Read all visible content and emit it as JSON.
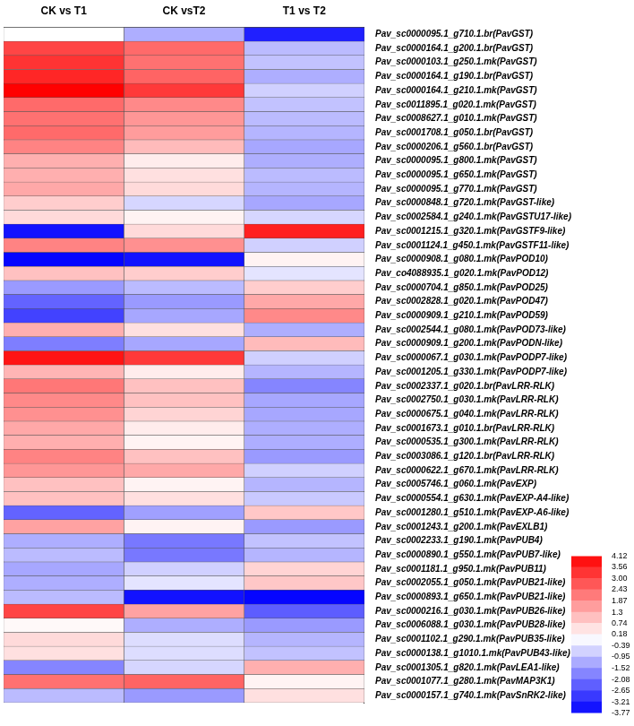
{
  "chart_data": {
    "type": "heatmap",
    "columns": [
      "CK vs T1",
      "CK vsT2",
      "T1 vs T2"
    ],
    "rows": [
      "Pav_sc0000095.1_g710.1.br(PavGST)",
      "Pav_sc0000164.1_g200.1.br(PavGST)",
      "Pav_sc0000103.1_g250.1.mk(PavGST)",
      "Pav_sc0000164.1_g190.1.br(PavGST)",
      "Pav_sc0000164.1_g210.1.mk(PavGST)",
      "Pav_sc0011895.1_g020.1.mk(PavGST)",
      "Pav_sc0008627.1_g010.1.mk(PavGST)",
      "Pav_sc0001708.1_g050.1.br(PavGST)",
      "Pav_sc0000206.1_g560.1.br(PavGST)",
      "Pav_sc0000095.1_g800.1.mk(PavGST)",
      "Pav_sc0000095.1_g650.1.mk(PavGST)",
      "Pav_sc0000095.1_g770.1.mk(PavGST)",
      "Pav_sc0000848.1_g720.1.mk(PavGST-like)",
      "Pav_sc0002584.1_g240.1.mk(PavGSTU17-like)",
      "Pav_sc0001215.1_g320.1.mk(PavGSTF9-like)",
      "Pav_sc0001124.1_g450.1.mk(PavGSTF11-like)",
      "Pav_sc0000908.1_g080.1.mk(PavPOD10)",
      "Pav_co4088935.1_g020.1.mk(PavPOD12)",
      "Pav_sc0000704.1_g850.1.mk(PavPOD25)",
      "Pav_sc0002828.1_g020.1.mk(PavPOD47)",
      "Pav_sc0000909.1_g210.1.mk(PavPOD59)",
      "Pav_sc0002544.1_g080.1.mk(PavPOD73-like)",
      "Pav_sc0000909.1_g200.1.mk(PavPODN-like)",
      "Pav_sc0000067.1_g030.1.mk(PavPODP7-like)",
      "Pav_sc0001205.1_g330.1.mk(PavPODP7-like)",
      "Pav_sc0002337.1_g020.1.br(PavLRR-RLK)",
      "Pav_sc0002750.1_g030.1.mk(PavLRR-RLK)",
      "Pav_sc0000675.1_g040.1.mk(PavLRR-RLK)",
      "Pav_sc0001673.1_g010.1.br(PavLRR-RLK)",
      "Pav_sc0000535.1_g300.1.mk(PavLRR-RLK)",
      "Pav_sc0003086.1_g120.1.br(PavLRR-RLK)",
      "Pav_sc0000622.1_g670.1.mk(PavLRR-RLK)",
      "Pav_sc0005746.1_g060.1.mk(PavEXP)",
      "Pav_sc0000554.1_g630.1.mk(PavEXP-A4-like)",
      "Pav_sc0001280.1_g510.1.mk(PavEXP-A6-like)",
      "Pav_sc0001243.1_g200.1.mk(PavEXLB1)",
      "Pav_sc0002233.1_g190.1.mk(PavPUB4)",
      "Pav_sc0000890.1_g550.1.mk(PavPUB7-like)",
      "Pav_sc0001181.1_g950.1.mk(PavPUB11)",
      "Pav_sc0002055.1_g050.1.mk(PavPUB21-like)",
      "Pav_sc0000893.1_g650.1.mk(PavPUB21-like)",
      "Pav_sc0000216.1_g030.1.mk(PavPUB26-like)",
      "Pav_sc0006088.1_g030.1.mk(PavPUB28-like)",
      "Pav_sc0001102.1_g290.1.mk(PavPUB35-like)",
      "Pav_sc0000138.1_g1010.1.mk(PavPUB43-like)",
      "Pav_sc0001305.1_g820.1.mk(PavLEA1-like)",
      "Pav_sc0001077.1_g280.1.mk(PavMAP3K1)",
      "Pav_sc0000157.1_g740.1.mk(PavSnRK2-like)"
    ],
    "values": [
      [
        0,
        -1.2,
        -3.3
      ],
      [
        3.0,
        2.4,
        -1.0
      ],
      [
        3.3,
        2.3,
        -0.9
      ],
      [
        3.5,
        2.5,
        -1.2
      ],
      [
        4.1,
        3.2,
        -0.7
      ],
      [
        2.4,
        1.9,
        -0.9
      ],
      [
        2.3,
        1.7,
        -1.0
      ],
      [
        2.4,
        1.6,
        -1.1
      ],
      [
        2.0,
        1.1,
        -1.3
      ],
      [
        1.3,
        0.3,
        -1.2
      ],
      [
        1.3,
        0.5,
        -1.0
      ],
      [
        1.4,
        0.6,
        -1.1
      ],
      [
        0.8,
        -0.6,
        -1.3
      ],
      [
        0.6,
        0.2,
        -0.6
      ],
      [
        -3.5,
        0.6,
        3.6
      ],
      [
        2.0,
        1.8,
        -0.7
      ],
      [
        -3.7,
        -3.5,
        0.2
      ],
      [
        1.0,
        0.8,
        -0.4
      ],
      [
        -1.5,
        -1.0,
        0.8
      ],
      [
        -2.3,
        -1.5,
        1.4
      ],
      [
        -2.8,
        -1.3,
        1.9
      ],
      [
        1.3,
        0.5,
        -1.2
      ],
      [
        -1.9,
        -1.3,
        1.1
      ],
      [
        3.8,
        3.2,
        -0.7
      ],
      [
        1.2,
        0.3,
        -1.1
      ],
      [
        2.2,
        1.0,
        -1.8
      ],
      [
        1.9,
        1.0,
        -1.3
      ],
      [
        1.8,
        0.7,
        -1.3
      ],
      [
        1.4,
        0.3,
        -1.2
      ],
      [
        1.3,
        0.2,
        -1.2
      ],
      [
        2.0,
        1.0,
        -1.5
      ],
      [
        1.7,
        1.4,
        -0.7
      ],
      [
        1.0,
        0.2,
        -1.1
      ],
      [
        1.0,
        0.5,
        -0.8
      ],
      [
        -2.3,
        -1.4,
        0.9
      ],
      [
        1.5,
        0.2,
        -1.5
      ],
      [
        -1.2,
        -2.0,
        -0.9
      ],
      [
        -1.0,
        -2.0,
        -1.1
      ],
      [
        -1.3,
        -0.7,
        0.7
      ],
      [
        -1.2,
        -0.4,
        0.9
      ],
      [
        -1.0,
        -3.5,
        -3.7
      ],
      [
        3.0,
        1.5,
        -2.4
      ],
      [
        0.1,
        -1.2,
        -1.5
      ],
      [
        0.6,
        -0.5,
        -1.1
      ],
      [
        0.5,
        -0.5,
        -0.9
      ],
      [
        -1.8,
        -0.6,
        1.3
      ],
      [
        2.3,
        2.5,
        0.2
      ],
      [
        -1.0,
        -1.5,
        0.5
      ]
    ],
    "colorbar": {
      "range": [
        -3.77,
        4.12
      ],
      "ticks": [
        4.12,
        3.56,
        {
          "value": 3,
          "label": "3.00"
        },
        2.43,
        1.87,
        1.3,
        0.74,
        0.18,
        -0.39,
        -0.95,
        -1.52,
        -2.08,
        -2.65,
        -3.21,
        -3.77
      ],
      "colors": [
        "#0000ff",
        "#ffffff",
        "#ff0000"
      ]
    }
  }
}
